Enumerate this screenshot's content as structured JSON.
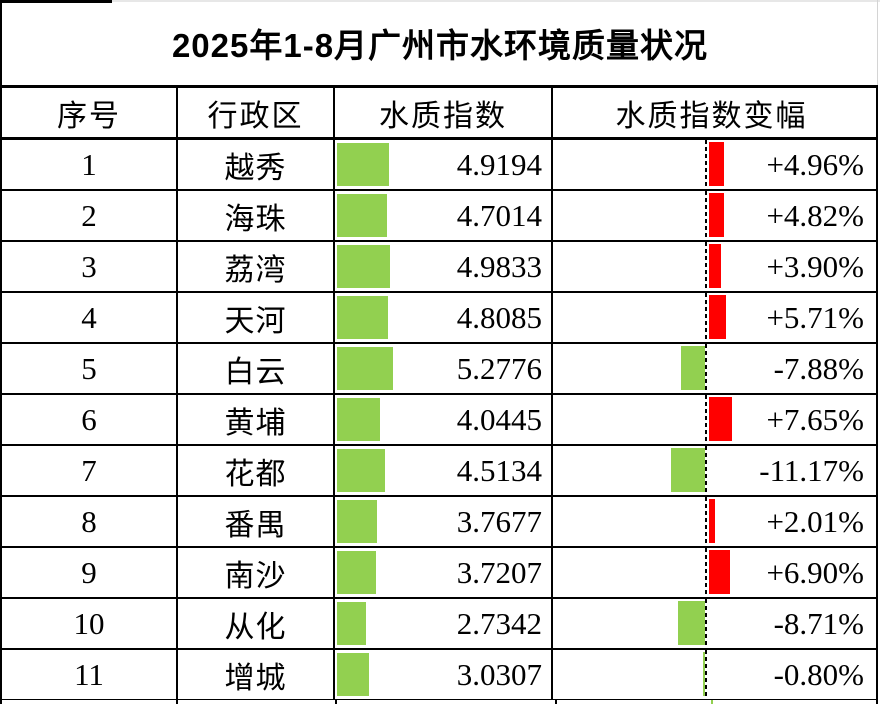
{
  "title": "2025年1-8月广州市水环境质量状况",
  "columns": [
    "序号",
    "行政区",
    "水质指数",
    "水质指数变幅"
  ],
  "colors": {
    "index_bar": "#92D050",
    "positive_change_bar": "#FF0000",
    "negative_change_bar": "#92D050",
    "border": "#000000"
  },
  "chart_data": {
    "type": "table",
    "title": "2025年1-8月广州市水环境质量状况",
    "columns": [
      "序号",
      "行政区",
      "水质指数",
      "水质指数变幅"
    ],
    "notes": "水质指数 column shows green data bars proportional to value; 水质指数变幅 column shows bars from a dashed zero axis: red to the right for positive change, green to the left for negative change",
    "rows": [
      {
        "seq": "1",
        "district": "越秀",
        "index": 4.9194,
        "index_display": "4.9194",
        "change": 4.96,
        "change_display": "+4.96%"
      },
      {
        "seq": "2",
        "district": "海珠",
        "index": 4.7014,
        "index_display": "4.7014",
        "change": 4.82,
        "change_display": "+4.82%"
      },
      {
        "seq": "3",
        "district": "荔湾",
        "index": 4.9833,
        "index_display": "4.9833",
        "change": 3.9,
        "change_display": "+3.90%"
      },
      {
        "seq": "4",
        "district": "天河",
        "index": 4.8085,
        "index_display": "4.8085",
        "change": 5.71,
        "change_display": "+5.71%"
      },
      {
        "seq": "5",
        "district": "白云",
        "index": 5.2776,
        "index_display": "5.2776",
        "change": -7.88,
        "change_display": "-7.88%"
      },
      {
        "seq": "6",
        "district": "黄埔",
        "index": 4.0445,
        "index_display": "4.0445",
        "change": 7.65,
        "change_display": "+7.65%"
      },
      {
        "seq": "7",
        "district": "花都",
        "index": 4.5134,
        "index_display": "4.5134",
        "change": -11.17,
        "change_display": "-11.17%"
      },
      {
        "seq": "8",
        "district": "番禺",
        "index": 3.7677,
        "index_display": "3.7677",
        "change": 2.01,
        "change_display": "+2.01%"
      },
      {
        "seq": "9",
        "district": "南沙",
        "index": 3.7207,
        "index_display": "3.7207",
        "change": 6.9,
        "change_display": "+6.90%"
      },
      {
        "seq": "10",
        "district": "从化",
        "index": 2.7342,
        "index_display": "2.7342",
        "change": -8.71,
        "change_display": "-8.71%"
      },
      {
        "seq": "11",
        "district": "增城",
        "index": 3.0307,
        "index_display": "3.0307",
        "change": -0.8,
        "change_display": "-0.80%"
      }
    ]
  }
}
